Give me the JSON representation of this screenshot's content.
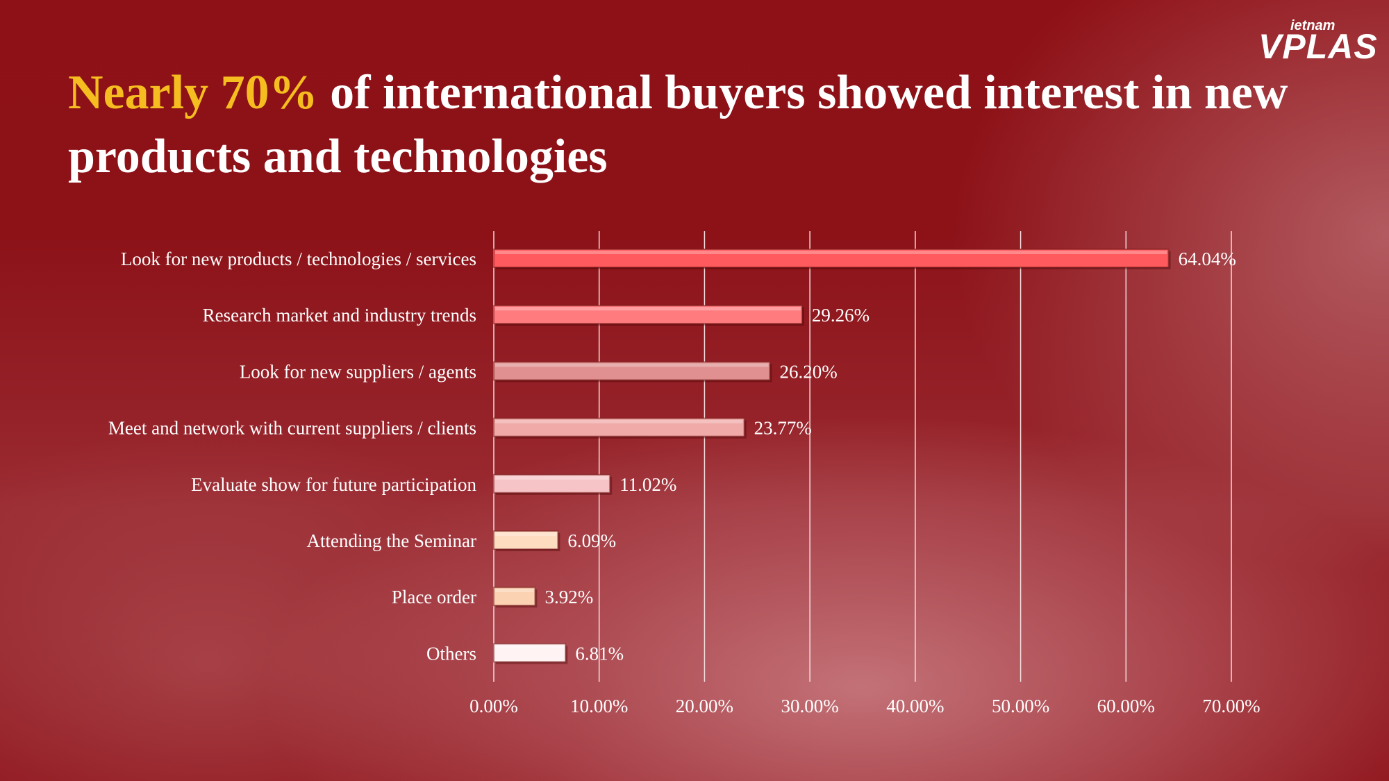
{
  "title": {
    "highlight": "Nearly 70%",
    "rest": " of international buyers showed interest in new products and technologies"
  },
  "logo": {
    "top_text": "ietnam",
    "bottom_text": "VPLAS"
  },
  "colors": {
    "highlight": "#f5bd1f",
    "bars": [
      "#ff5a5e",
      "#ff7b7e",
      "#e09090",
      "#f0aaa8",
      "#f6c4c6",
      "#fddcc0",
      "#fbd2b2",
      "#fff3f4"
    ]
  },
  "chart_data": {
    "type": "bar",
    "orientation": "horizontal",
    "categories": [
      "Look for new products / technologies / services",
      "Research market and industry trends",
      "Look for new suppliers / agents",
      "Meet and network with current suppliers / clients",
      "Evaluate show for future participation",
      "Attending the Seminar",
      "Place order",
      "Others"
    ],
    "values": [
      64.04,
      29.26,
      26.2,
      23.77,
      11.02,
      6.09,
      3.92,
      6.81
    ],
    "value_labels": [
      "64.04%",
      "29.26%",
      "26.20%",
      "23.77%",
      "11.02%",
      "6.09%",
      "3.92%",
      "6.81%"
    ],
    "xlim": [
      0,
      70
    ],
    "x_ticks": [
      0,
      10,
      20,
      30,
      40,
      50,
      60,
      70
    ],
    "x_tick_labels": [
      "0.00%",
      "10.00%",
      "20.00%",
      "30.00%",
      "40.00%",
      "50.00%",
      "60.00%",
      "70.00%"
    ],
    "grid": true,
    "legend": false
  }
}
